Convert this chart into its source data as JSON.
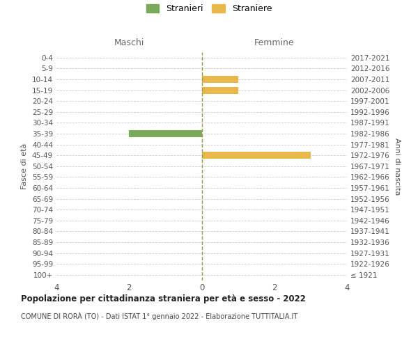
{
  "age_groups": [
    "100+",
    "95-99",
    "90-94",
    "85-89",
    "80-84",
    "75-79",
    "70-74",
    "65-69",
    "60-64",
    "55-59",
    "50-54",
    "45-49",
    "40-44",
    "35-39",
    "30-34",
    "25-29",
    "20-24",
    "15-19",
    "10-14",
    "5-9",
    "0-4"
  ],
  "birth_years": [
    "≤ 1921",
    "1922-1926",
    "1927-1931",
    "1932-1936",
    "1937-1941",
    "1942-1946",
    "1947-1951",
    "1952-1956",
    "1957-1961",
    "1962-1966",
    "1967-1971",
    "1972-1976",
    "1977-1981",
    "1982-1986",
    "1987-1991",
    "1992-1996",
    "1997-2001",
    "2002-2006",
    "2007-2011",
    "2012-2016",
    "2017-2021"
  ],
  "maschi": [
    0,
    0,
    0,
    0,
    0,
    0,
    0,
    0,
    0,
    0,
    0,
    0,
    0,
    2,
    0,
    0,
    0,
    0,
    0,
    0,
    0
  ],
  "femmine": [
    0,
    0,
    0,
    0,
    0,
    0,
    0,
    0,
    0,
    0,
    0,
    3,
    0,
    0,
    0,
    0,
    0,
    1,
    1,
    0,
    0
  ],
  "color_maschi": "#7aaa59",
  "color_femmine": "#e8b84b",
  "title_main": "Popolazione per cittadinanza straniera per età e sesso - 2022",
  "title_sub": "COMUNE DI RORÀ (TO) - Dati ISTAT 1° gennaio 2022 - Elaborazione TUTTITALIA.IT",
  "label_maschi": "Stranieri",
  "label_femmine": "Straniere",
  "label_left": "Maschi",
  "label_right": "Femmine",
  "ylabel_left": "Fasce di età",
  "ylabel_right": "Anni di nascita",
  "xlim": 4,
  "background_color": "#ffffff",
  "grid_color": "#cccccc"
}
